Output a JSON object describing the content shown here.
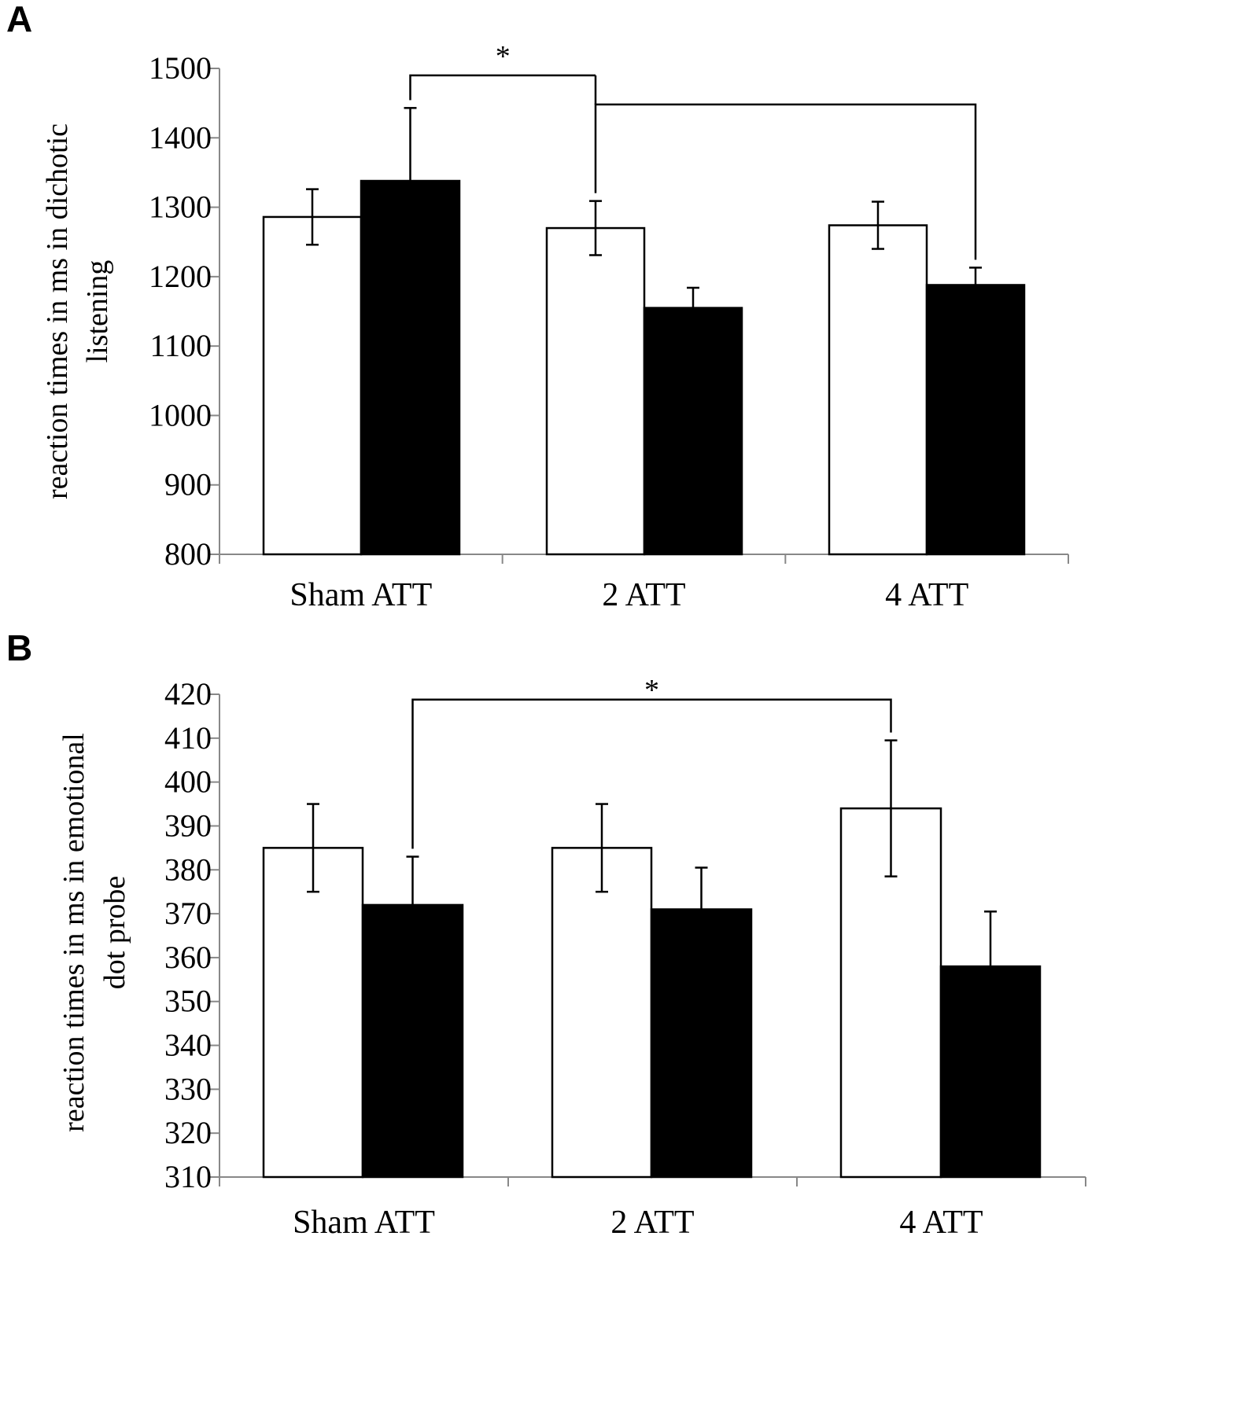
{
  "chart_data": [
    {
      "panel": "A",
      "type": "bar",
      "categories": [
        "Sham ATT",
        "2 ATT",
        "4 ATT"
      ],
      "series": [
        {
          "name": "white",
          "fill": "#ffffff",
          "values": [
            1286,
            1270,
            1274
          ],
          "errors": [
            40,
            39,
            34
          ]
        },
        {
          "name": "black",
          "fill": "#000000",
          "values": [
            1338,
            1155,
            1188
          ],
          "errors": [
            105,
            29,
            25
          ]
        }
      ],
      "ylabel_lines": [
        "reaction times in ms in dichotic",
        "listening"
      ],
      "ylim": [
        800,
        1500
      ],
      "yticks": [
        800,
        900,
        1000,
        1100,
        1200,
        1300,
        1400,
        1500
      ],
      "brackets": [
        {
          "from": [
            0,
            1
          ],
          "to": [
            1,
            0
          ],
          "height": 1490,
          "join": "stem"
        },
        {
          "from": [
            1,
            0
          ],
          "to": [
            2,
            1
          ],
          "height": 1448,
          "join": "star"
        }
      ],
      "annotation": "*"
    },
    {
      "panel": "B",
      "type": "bar",
      "categories": [
        "Sham ATT",
        "2 ATT",
        "4 ATT"
      ],
      "series": [
        {
          "name": "white",
          "fill": "#ffffff",
          "values": [
            385,
            385,
            394
          ],
          "errors": [
            10,
            10,
            15.5
          ]
        },
        {
          "name": "black",
          "fill": "#000000",
          "values": [
            372,
            371,
            358
          ],
          "errors": [
            11,
            9.5,
            12.5
          ]
        }
      ],
      "ylabel_lines": [
        "reaction times in ms in emotional",
        "dot probe"
      ],
      "ylim": [
        310,
        420
      ],
      "yticks": [
        310,
        320,
        330,
        340,
        350,
        360,
        370,
        380,
        390,
        400,
        410,
        420
      ],
      "brackets": [
        {
          "from": [
            0,
            1
          ],
          "to": [
            2,
            0
          ],
          "height": 418.8,
          "join": "star"
        }
      ],
      "annotation": "*"
    }
  ]
}
